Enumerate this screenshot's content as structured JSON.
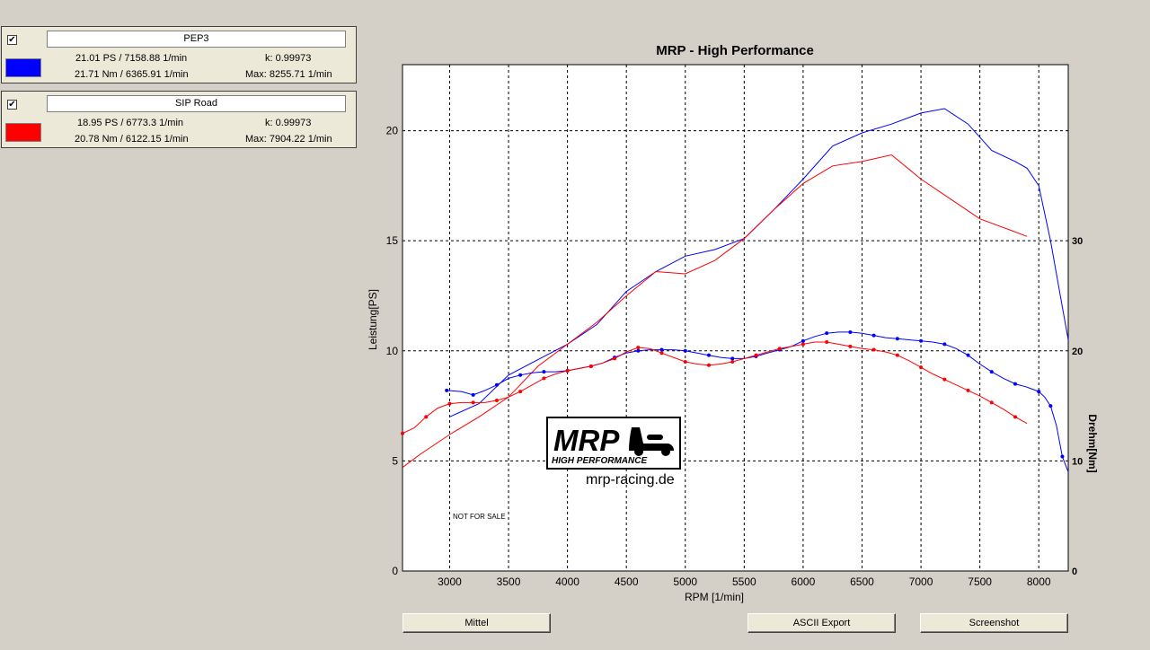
{
  "legend": [
    {
      "checked": "✔",
      "name": "PEP3",
      "color": "#0000ff",
      "power": "21.01 PS / 7158.88 1/min",
      "k": "k: 0.99973",
      "torque": "21.71 Nm / 6365.91 1/min",
      "max": "Max: 8255.71 1/min"
    },
    {
      "checked": "✔",
      "name": "SIP Road",
      "color": "#ff0000",
      "power": "18.95 PS / 6773.3 1/min",
      "k": "k: 0.99973",
      "torque": "20.78 Nm / 6122.15 1/min",
      "max": "Max: 7904.22 1/min"
    }
  ],
  "buttons": {
    "mittel": "Mittel",
    "ascii": "ASCII Export",
    "screenshot": "Screenshot"
  },
  "logo": {
    "mark": "MRP",
    "tagline": "HIGH PERFORMANCE",
    "url": "mrp-racing.de"
  },
  "watermark": "NOT FOR SALE",
  "chart_data": {
    "type": "line",
    "title": "MRP - High Performance",
    "xlabel": "RPM [1/min]",
    "ylabel": "Leistung[PS]",
    "y2label": "Drehm[Nm]",
    "xlim": [
      2600,
      8250
    ],
    "ylim": [
      0,
      23
    ],
    "y2lim": [
      0,
      46
    ],
    "xticks": [
      3000,
      3500,
      4000,
      4500,
      5000,
      5500,
      6000,
      6500,
      7000,
      7500,
      8000
    ],
    "yticks": [
      0,
      5,
      10,
      15,
      20
    ],
    "y2ticks": [
      0,
      10,
      20,
      30
    ],
    "grid": true,
    "series": [
      {
        "name": "PEP3",
        "kind": "power",
        "color": "#0000ff",
        "x": [
          3000,
          3250,
          3500,
          3750,
          4000,
          4250,
          4500,
          4750,
          5000,
          5250,
          5500,
          5750,
          6000,
          6250,
          6500,
          6750,
          7000,
          7200,
          7400,
          7600,
          7800,
          7900,
          8000,
          8100,
          8200,
          8250
        ],
        "y": [
          7.0,
          7.6,
          8.9,
          9.6,
          10.3,
          11.2,
          12.7,
          13.6,
          14.3,
          14.6,
          15.1,
          16.4,
          17.8,
          19.3,
          19.9,
          20.3,
          20.8,
          21.0,
          20.3,
          19.1,
          18.6,
          18.3,
          17.5,
          15.0,
          12.0,
          10.5
        ]
      },
      {
        "name": "SIP Road",
        "kind": "power",
        "color": "#ff0000",
        "x": [
          2600,
          2750,
          3000,
          3250,
          3500,
          3750,
          4000,
          4250,
          4500,
          4750,
          5000,
          5250,
          5500,
          5750,
          6000,
          6250,
          6500,
          6750,
          7000,
          7250,
          7500,
          7750,
          7900
        ],
        "y": [
          4.7,
          5.3,
          6.2,
          7.0,
          7.9,
          9.3,
          10.3,
          11.3,
          12.5,
          13.6,
          13.5,
          14.1,
          15.1,
          16.4,
          17.6,
          18.4,
          18.6,
          18.9,
          17.8,
          16.9,
          16.0,
          15.5,
          15.2
        ]
      },
      {
        "name": "PEP3",
        "kind": "torque",
        "color": "#0000ff",
        "x": [
          2975,
          3100,
          3200,
          3300,
          3400,
          3500,
          3600,
          3700,
          3800,
          3900,
          4000,
          4100,
          4200,
          4300,
          4400,
          4500,
          4600,
          4700,
          4800,
          4900,
          5000,
          5100,
          5200,
          5300,
          5400,
          5500,
          5600,
          5700,
          5800,
          5900,
          6000,
          6100,
          6200,
          6300,
          6400,
          6500,
          6600,
          6700,
          6800,
          6900,
          7000,
          7100,
          7200,
          7300,
          7400,
          7500,
          7600,
          7700,
          7800,
          7900,
          8000,
          8050,
          8100,
          8150,
          8200,
          8250
        ],
        "y": [
          16.4,
          16.3,
          16.0,
          16.4,
          16.9,
          17.5,
          17.8,
          18.0,
          18.1,
          18.1,
          18.2,
          18.4,
          18.6,
          18.9,
          19.4,
          19.8,
          20.0,
          20.1,
          20.1,
          20.1,
          20.0,
          19.8,
          19.6,
          19.4,
          19.3,
          19.3,
          19.5,
          19.8,
          20.1,
          20.4,
          20.9,
          21.3,
          21.6,
          21.7,
          21.7,
          21.6,
          21.4,
          21.2,
          21.1,
          21.0,
          20.9,
          20.8,
          20.6,
          20.2,
          19.6,
          18.8,
          18.1,
          17.5,
          17.0,
          16.7,
          16.3,
          15.8,
          15.0,
          13.2,
          10.4,
          9.0
        ]
      },
      {
        "name": "SIP Road",
        "kind": "torque",
        "color": "#ff0000",
        "x": [
          2600,
          2700,
          2800,
          2900,
          3000,
          3100,
          3200,
          3300,
          3400,
          3500,
          3600,
          3700,
          3800,
          3900,
          4000,
          4100,
          4200,
          4300,
          4400,
          4500,
          4600,
          4700,
          4800,
          4900,
          5000,
          5100,
          5200,
          5300,
          5400,
          5500,
          5600,
          5700,
          5800,
          5900,
          6000,
          6100,
          6200,
          6300,
          6400,
          6500,
          6600,
          6700,
          6800,
          6900,
          7000,
          7100,
          7200,
          7300,
          7400,
          7500,
          7600,
          7700,
          7800,
          7900
        ],
        "y": [
          12.5,
          13.0,
          14.0,
          14.8,
          15.2,
          15.3,
          15.3,
          15.3,
          15.5,
          15.8,
          16.3,
          16.9,
          17.5,
          17.9,
          18.2,
          18.4,
          18.6,
          18.9,
          19.3,
          19.9,
          20.3,
          20.2,
          19.8,
          19.4,
          19.0,
          18.8,
          18.7,
          18.8,
          19.0,
          19.3,
          19.6,
          19.9,
          20.2,
          20.4,
          20.6,
          20.8,
          20.8,
          20.6,
          20.4,
          20.2,
          20.1,
          19.9,
          19.6,
          19.1,
          18.5,
          17.9,
          17.4,
          16.9,
          16.4,
          15.9,
          15.3,
          14.7,
          14.0,
          13.4
        ]
      }
    ]
  }
}
